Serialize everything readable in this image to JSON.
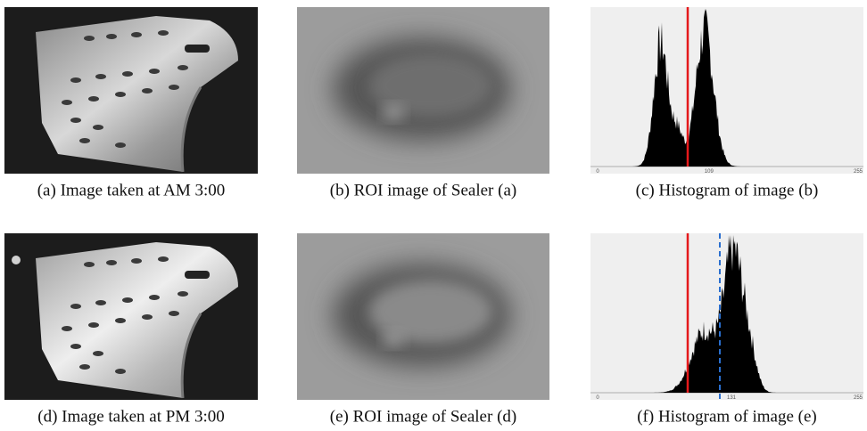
{
  "figure": {
    "panels": [
      {
        "caption": "(a) Image taken at AM 3:00"
      },
      {
        "caption": "(b) ROI image of Sealer (a)"
      },
      {
        "caption": "(c) Histogram of image (b)",
        "ticks": [
          "0",
          "109",
          "255"
        ]
      },
      {
        "caption": "(d) Image taken at PM 3:00"
      },
      {
        "caption": "(e) ROI image of Sealer (d)"
      },
      {
        "caption": "(f)  Histogram of image (e)",
        "ticks": [
          "0",
          "131",
          "255"
        ]
      }
    ]
  }
}
